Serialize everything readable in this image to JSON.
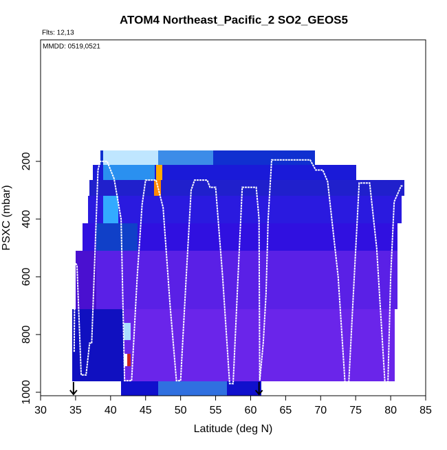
{
  "chart_data": {
    "type": "line",
    "title": "ATOM4 Northeast_Pacific_2 SO2_GEOS5",
    "annotations": [
      "Flts: 12,13",
      "MMDD: 0519,0521"
    ],
    "x_label": "Latitude (deg N)",
    "y_label": "PSXC (mbar)",
    "xlim": [
      30,
      85
    ],
    "xticks": [
      30,
      35,
      40,
      45,
      50,
      55,
      60,
      65,
      70,
      75,
      80,
      85
    ],
    "ylim": [
      1012,
      -221
    ],
    "yticks": [
      200,
      400,
      600,
      800,
      1000
    ],
    "arrows_x": [
      34.7,
      61.2
    ],
    "series": [
      {
        "name": "Flight track",
        "color": "#ffffff",
        "x": [
          34.8,
          34.9,
          35.2,
          35.8,
          36.5,
          37,
          37.3,
          38.2,
          38.5,
          39.5,
          40.5,
          41.5,
          42,
          43,
          43.8,
          44.5,
          45,
          46.5,
          47.5,
          48.5,
          49.4,
          50,
          50.8,
          51.5,
          52,
          53.8,
          54.2,
          55,
          56,
          57,
          57.5,
          58.2,
          58.8,
          60.8,
          61.2,
          61.3,
          61.8,
          62.2,
          62.5,
          63,
          65,
          68.5,
          69.3,
          70.3,
          71,
          72.5,
          73.5,
          74,
          74.8,
          75.5,
          77,
          78,
          79.2,
          79.6,
          80,
          80.5,
          81.5,
          81.8
        ],
        "values": [
          860,
          550,
          560,
          940,
          940,
          830,
          830,
          230,
          200,
          200,
          260,
          400,
          960,
          960,
          600,
          350,
          265,
          265,
          360,
          700,
          960,
          960,
          600,
          300,
          265,
          265,
          290,
          290,
          600,
          970,
          970,
          600,
          290,
          290,
          400,
          960,
          830,
          660,
          400,
          195,
          195,
          195,
          230,
          230,
          270,
          600,
          975,
          975,
          600,
          275,
          275,
          500,
          975,
          975,
          600,
          340,
          285,
          285
        ]
      }
    ]
  }
}
